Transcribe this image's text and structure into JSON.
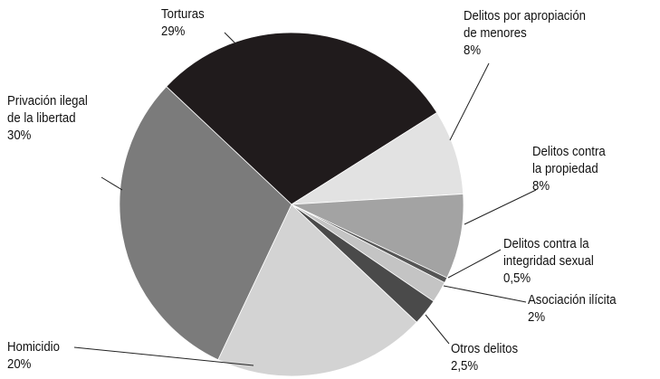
{
  "chart_data": {
    "type": "pie",
    "categories": [
      "Torturas",
      "Delitos por apropiación\nde menores",
      "Delitos contra\nla propiedad",
      "Delitos contra la\nintegridad sexual",
      "Asociación ilícita",
      "Otros delitos",
      "Homicidio",
      "Privación ilegal\nde la libertad"
    ],
    "values": [
      29,
      8,
      8,
      0.5,
      2,
      2.5,
      20,
      30
    ],
    "value_labels": [
      "29%",
      "8%",
      "8%",
      "0,5%",
      "2%",
      "2,5%",
      "20%",
      "30%"
    ],
    "colors": [
      "#201b1c",
      "#e2e2e2",
      "#a3a3a3",
      "#555555",
      "#c4c4c4",
      "#4a4a4a",
      "#d3d3d3",
      "#7b7b7b"
    ]
  }
}
